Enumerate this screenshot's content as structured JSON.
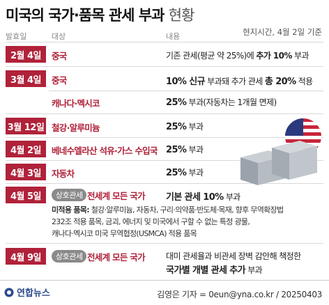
{
  "title": {
    "main": "미국의 국가·품목 관세 부과",
    "sub": "현황"
  },
  "headers": {
    "date": "발효일",
    "target": "대상",
    "content": "내용",
    "as_of": "현지시간, 4월 2일 기준"
  },
  "rows": [
    {
      "date": "2월 4일",
      "target": "중국",
      "c1": "기존 관세(평균 약 25%)에 ",
      "c2": "추가 10%",
      "c3": " 부과"
    },
    {
      "date": "3월 4일",
      "target": "중국",
      "c1": "10% 신규",
      "c2": " 부과돼 추가 관세 ",
      "c3": "총 20%",
      "c4": " 적용"
    },
    {
      "target": "캐나다·멕시코",
      "c1": "25%",
      "c2": " 부과(자동차는 1개월 면제)"
    },
    {
      "date": "3월 12일",
      "target": "철강·알루미늄",
      "c1": "25%",
      "c2": " 부과"
    },
    {
      "date": "4월 2일",
      "target": "베네수엘라산 석유·가스 수입국",
      "c1": "25%",
      "c2": " 부과"
    },
    {
      "date": "4월 3일",
      "target": "자동차",
      "c1": "25%",
      "c2": " 부과"
    },
    {
      "date": "4월 5일",
      "badge": "상호관세",
      "target": "전세계 모든 국가",
      "c1": "기본 관세 10%",
      "c2": " 부과",
      "note_label": "미적용 품목:",
      "note1": " 철강·알루미늄, 자동차, 구리·의약품·반도체·목재, 향후 무역확장법",
      "note2": "232조 적용 품목, 금괴, 에너지 및 미국에서 구할 수 없는 특정 광물,",
      "note3": "캐나다·멕시코 미국 무역협정(USMCA) 적용 품목"
    },
    {
      "date": "4월 9일",
      "badge": "상호관세",
      "target": "전세계 모든 국가",
      "c1": "대미 관세율과 비관세 장벽 감안해 책정한",
      "c2": "국가별 개별 관세 추가",
      "c3": " 부과"
    }
  ],
  "footer": {
    "logo": "연합뉴스",
    "credit": "김영은 기자 = 0eun@yna.co.kr / 20250403"
  }
}
